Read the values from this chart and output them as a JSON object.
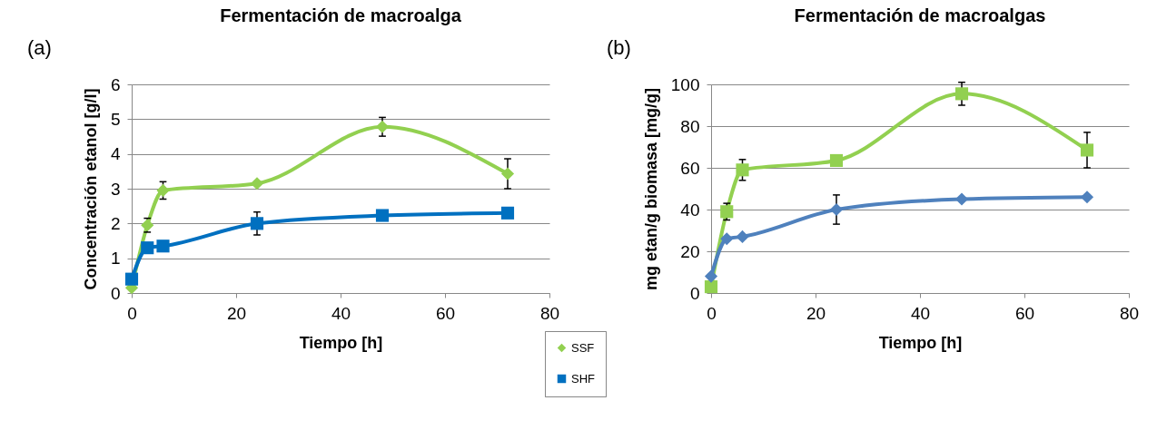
{
  "chart_data": [
    {
      "type": "line",
      "title": "Fermentación de macroalga",
      "annotations": [
        "(a)"
      ],
      "xlabel": "Tiempo [h]",
      "ylabel": "Concentración etanol [g/l]",
      "x": [
        0,
        3,
        6,
        24,
        48,
        72
      ],
      "xlim": [
        0,
        80
      ],
      "xticks": [
        0,
        20,
        40,
        60,
        80
      ],
      "ylim": [
        0,
        6
      ],
      "yticks": [
        0,
        1,
        2,
        3,
        4,
        5,
        6
      ],
      "grid": "y",
      "legend": "bottom right",
      "line_style": "solid",
      "series": [
        {
          "name": "SSF",
          "color": "#92d050",
          "marker": "diamond",
          "values": [
            0.15,
            1.95,
            2.95,
            3.15,
            4.78,
            3.43
          ],
          "errors": [
            null,
            0.2,
            0.25,
            null,
            0.27,
            0.43
          ]
        },
        {
          "name": "SHF",
          "color": "#0070c0",
          "marker": "square",
          "values": [
            0.4,
            1.3,
            1.35,
            2.0,
            2.23,
            2.3
          ],
          "errors": [
            null,
            null,
            null,
            0.33,
            null,
            null
          ]
        }
      ]
    },
    {
      "type": "line",
      "title": "Fermentación de macroalgas",
      "annotations": [
        "(b)"
      ],
      "xlabel": "Tiempo  [h]",
      "ylabel": "mg etan/g biomasa [mg/g]",
      "x": [
        0,
        3,
        6,
        24,
        48,
        72
      ],
      "xlim": [
        0,
        80
      ],
      "xticks": [
        0,
        20,
        40,
        60,
        80
      ],
      "ylim": [
        0,
        100
      ],
      "yticks": [
        0,
        20,
        40,
        60,
        80,
        100
      ],
      "grid": "y",
      "line_style": "solid",
      "series": [
        {
          "color": "#92d050",
          "marker": "square",
          "values": [
            3,
            39,
            59,
            63.5,
            95.5,
            68.5
          ],
          "errors": [
            null,
            4,
            5,
            null,
            5.5,
            8.5
          ]
        },
        {
          "color": "#4f81bd",
          "marker": "diamond",
          "values": [
            8,
            26,
            27,
            40,
            45,
            46
          ],
          "errors": [
            null,
            null,
            null,
            7,
            null,
            null
          ]
        }
      ]
    }
  ]
}
